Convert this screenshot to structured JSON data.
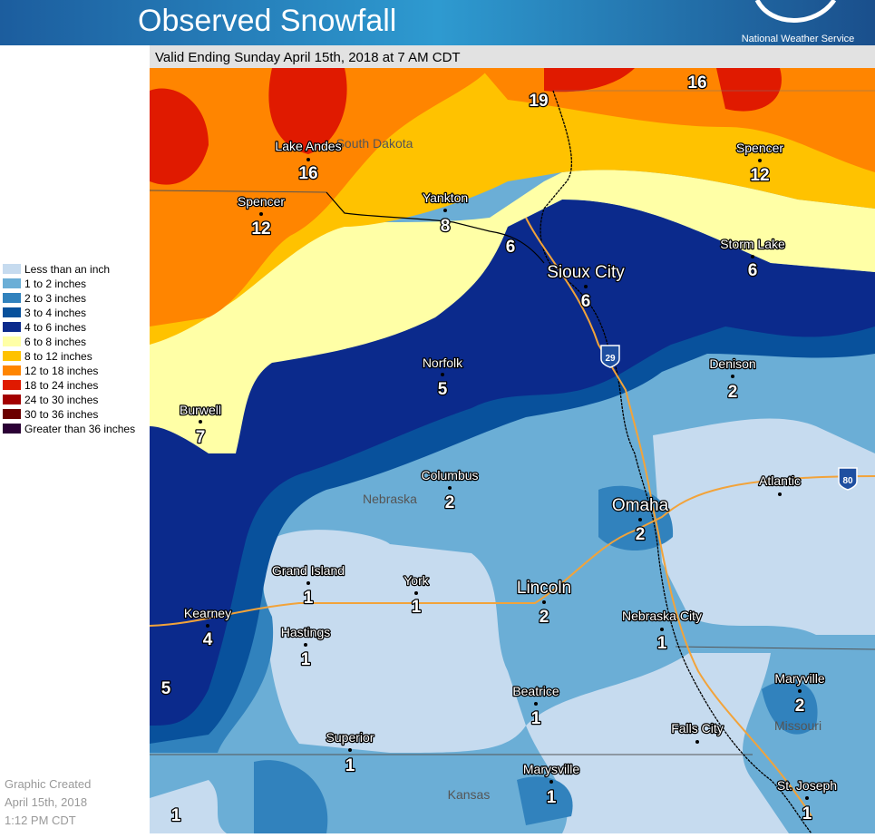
{
  "header": {
    "title": "Observed Snowfall",
    "agency": "National Weather Service"
  },
  "subtitle": "Valid Ending Sunday April 15th, 2018 at 7 AM CDT",
  "legend": [
    {
      "label": "Less than an inch",
      "color": "#c6dbef"
    },
    {
      "label": "1 to 2 inches",
      "color": "#6baed6"
    },
    {
      "label": "2 to 3 inches",
      "color": "#3182bd"
    },
    {
      "label": "3 to 4 inches",
      "color": "#08519c"
    },
    {
      "label": "4 to 6 inches",
      "color": "#0b2a8c"
    },
    {
      "label": "6 to 8 inches",
      "color": "#ffffa6"
    },
    {
      "label": "8 to 12 inches",
      "color": "#ffc200"
    },
    {
      "label": "12 to 18 inches",
      "color": "#ff8500"
    },
    {
      "label": "18 to 24 inches",
      "color": "#e01a00"
    },
    {
      "label": "24 to 30 inches",
      "color": "#a30000"
    },
    {
      "label": "30 to 36 inches",
      "color": "#6b0000"
    },
    {
      "label": "Greater than 36 inches",
      "color": "#2b0035"
    }
  ],
  "states": [
    "South Dakota",
    "Nebraska",
    "Kansas",
    "Missouri"
  ],
  "highways": [
    "29",
    "80"
  ],
  "cities": [
    {
      "name": "Lake Andes",
      "value": 16
    },
    {
      "name": "Spencer",
      "value": 12
    },
    {
      "name": "Yankton",
      "value": 8
    },
    {
      "name": "Sioux City",
      "value": 6
    },
    {
      "name": "Norfolk",
      "value": 5
    },
    {
      "name": "Burwell",
      "value": 7
    },
    {
      "name": "Columbus",
      "value": 2
    },
    {
      "name": "Omaha",
      "value": 2
    },
    {
      "name": "Atlantic"
    },
    {
      "name": "Denison",
      "value": 2
    },
    {
      "name": "Spencer",
      "value": 12
    },
    {
      "name": "Storm Lake",
      "value": 6
    },
    {
      "name": "Grand Island",
      "value": 1
    },
    {
      "name": "York",
      "value": 1
    },
    {
      "name": "Lincoln",
      "value": 2
    },
    {
      "name": "Kearney",
      "value": 4
    },
    {
      "name": "Hastings",
      "value": 1
    },
    {
      "name": "Nebraska City",
      "value": 1
    },
    {
      "name": "Maryville",
      "value": 2
    },
    {
      "name": "Beatrice",
      "value": 1
    },
    {
      "name": "Falls City"
    },
    {
      "name": "Superior",
      "value": 1
    },
    {
      "name": "Marysville",
      "value": 1
    },
    {
      "name": "St. Joseph",
      "value": 1
    }
  ],
  "amounts": [
    19,
    16,
    6,
    5,
    1
  ],
  "footer": [
    "Graphic Created",
    "April 15th, 2018",
    "1:12 PM CDT"
  ]
}
